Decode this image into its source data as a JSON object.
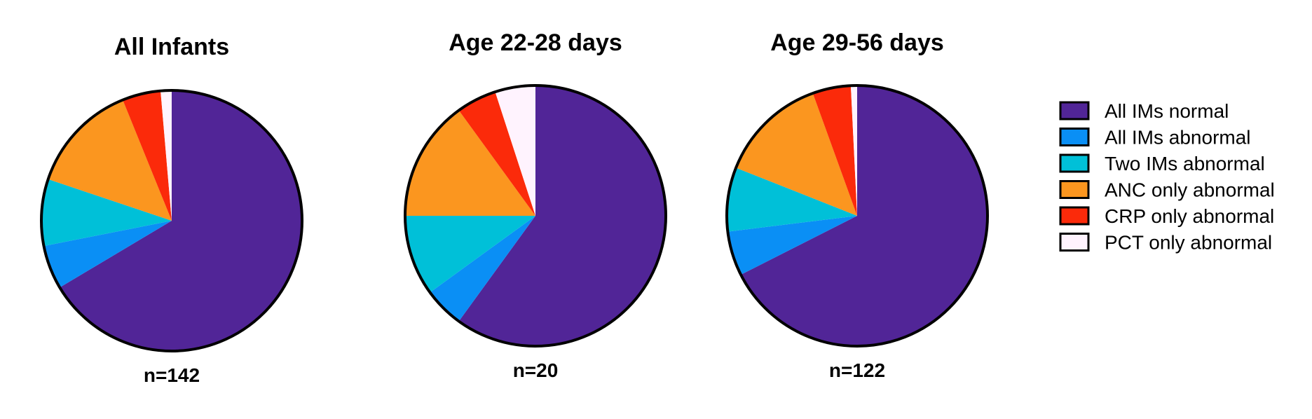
{
  "chart_data": {
    "type": "pie",
    "categories": [
      "All IMs normal",
      "All IMs abnormal",
      "Two IMs abnormal",
      "ANC only abnormal",
      "CRP only abnormal",
      "PCT only abnormal"
    ],
    "colors": [
      "#512597",
      "#0a8ff5",
      "#00c0d8",
      "#fb961f",
      "#fb2a0a",
      "#fff3fe"
    ],
    "legend_position": "right",
    "charts": [
      {
        "title": "All Infants",
        "n_label": "n=142",
        "values": [
          0.683,
          0.056,
          0.085,
          0.141,
          0.049,
          0.014
        ]
      },
      {
        "title": "Age 22-28 days",
        "n_label": "n=20",
        "values": [
          0.6,
          0.05,
          0.1,
          0.15,
          0.05,
          0.05
        ]
      },
      {
        "title": "Age 29-56 days",
        "n_label": "n=122",
        "values": [
          0.697,
          0.057,
          0.082,
          0.139,
          0.049,
          0.008
        ]
      }
    ]
  }
}
